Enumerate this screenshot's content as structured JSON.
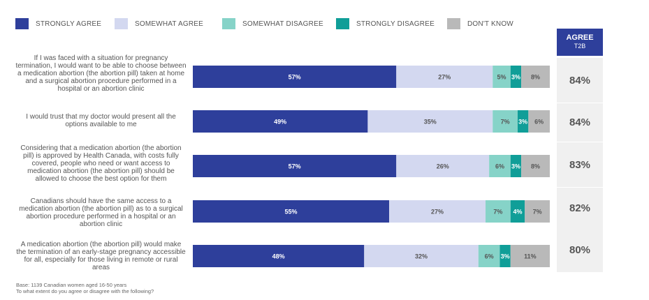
{
  "legend": [
    {
      "label": "STRONGLY AGREE",
      "color": "#2e3f9b"
    },
    {
      "label": "SOMEWHAT AGREE",
      "color": "#d3d8f0"
    },
    {
      "label": "SOMEWHAT DISAGREE",
      "color": "#86d3c8"
    },
    {
      "label": "STRONGLY DISAGREE",
      "color": "#109e98"
    },
    {
      "label": "DON'T KNOW",
      "color": "#b9b9b9"
    }
  ],
  "t2b_header": {
    "title": "AGREE",
    "subtitle": "T2B"
  },
  "footnote": {
    "base": "Base: 1139 Canadian women aged 16-50 years",
    "question": "To what extent do you agree or disagree with the following?"
  },
  "chart_data": {
    "type": "bar",
    "orientation": "horizontal",
    "stacked": true,
    "series_names": [
      "STRONGLY AGREE",
      "SOMEWHAT AGREE",
      "SOMEWHAT DISAGREE",
      "STRONGLY DISAGREE",
      "DON'T KNOW"
    ],
    "rows": [
      {
        "statement": "If I was faced with a situation for pregnancy termination, I would want to be able to choose between a medication abortion (the abortion pill) taken at home and a surgical abortion procedure performed in a hospital or an abortion clinic",
        "values": [
          57,
          27,
          5,
          3,
          8
        ],
        "labels": [
          "57%",
          "27%",
          "5%",
          "3%",
          "8%"
        ],
        "t2b": "84%"
      },
      {
        "statement": "I would trust that my doctor would present all the options available to me",
        "values": [
          49,
          35,
          7,
          3,
          6
        ],
        "labels": [
          "49%",
          "35%",
          "7%",
          "3%",
          "6%"
        ],
        "t2b": "84%"
      },
      {
        "statement": "Considering that a medication abortion (the abortion pill) is approved by Health Canada, with costs fully covered, people who need or want access to medication abortion (the abortion pill) should be allowed to choose the best option for them",
        "values": [
          57,
          26,
          6,
          3,
          8
        ],
        "labels": [
          "57%",
          "26%",
          "6%",
          "3%",
          "8%"
        ],
        "t2b": "83%"
      },
      {
        "statement": "Canadians should have the same access to a medication abortion (the abortion pill) as to a surgical abortion procedure performed in a hospital or an abortion clinic",
        "values": [
          55,
          27,
          7,
          4,
          7
        ],
        "labels": [
          "55%",
          "27%",
          "7%",
          "4%",
          "7%"
        ],
        "t2b": "82%"
      },
      {
        "statement": "A medication abortion (the abortion pill) would make the termination of an early-stage pregnancy accessible for all, especially for those living in remote or rural areas",
        "values": [
          48,
          32,
          6,
          3,
          11
        ],
        "labels": [
          "48%",
          "32%",
          "6%",
          "3%",
          "11%"
        ],
        "t2b": "80%"
      }
    ],
    "xlim": [
      0,
      100
    ]
  }
}
